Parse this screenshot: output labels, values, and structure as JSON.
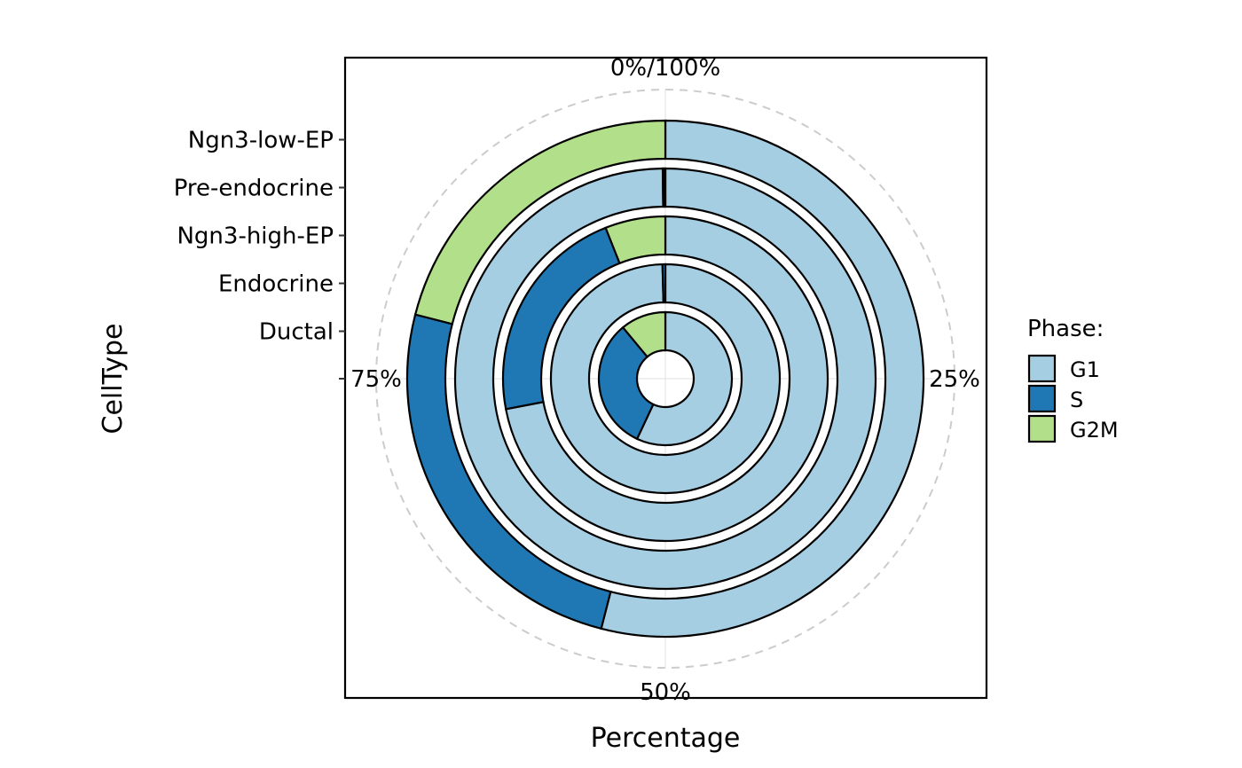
{
  "chart_data": {
    "type": "pie",
    "subtype": "multi-ring donut (polar stacked bar)",
    "xlabel": "Percentage",
    "ylabel": "CellType",
    "categories": [
      "Ductal",
      "Endocrine",
      "Ngn3-high-EP",
      "Pre-endocrine",
      "Ngn3-low-EP"
    ],
    "angle_ticks": [
      {
        "value": 0,
        "label": "0%/100%"
      },
      {
        "value": 25,
        "label": "25%"
      },
      {
        "value": 50,
        "label": "50%"
      },
      {
        "value": 75,
        "label": "75%"
      }
    ],
    "series": [
      {
        "name": "G1",
        "color": "#a6cee3",
        "values": [
          57,
          99.6,
          72,
          99.8,
          54
        ]
      },
      {
        "name": "S",
        "color": "#1f78b4",
        "values": [
          32,
          0.4,
          22,
          0.1,
          25
        ]
      },
      {
        "name": "G2M",
        "color": "#b2df8a",
        "values": [
          11,
          0,
          6,
          0.1,
          21
        ]
      }
    ],
    "legend": {
      "title": "Phase:",
      "position": "right",
      "entries": [
        "G1",
        "S",
        "G2M"
      ]
    },
    "grid": true,
    "panel_border": true
  }
}
